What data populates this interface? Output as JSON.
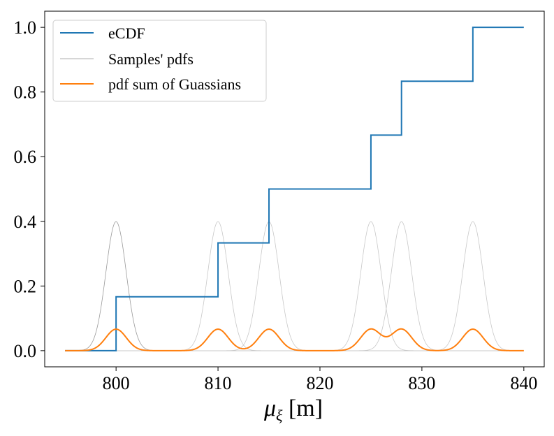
{
  "chart_data": {
    "type": "line",
    "title": "",
    "xlabel": "μ_ξ [m]",
    "xlabel_parts": {
      "symbol": "μ",
      "subscript": "ξ",
      "unit": "[m]"
    },
    "ylabel": "",
    "xlim": [
      793,
      842
    ],
    "ylim": [
      -0.05,
      1.05
    ],
    "xticks": [
      800,
      810,
      820,
      830,
      840
    ],
    "xtick_labels": [
      "800",
      "810",
      "820",
      "830",
      "840"
    ],
    "yticks": [
      0.0,
      0.2,
      0.4,
      0.6,
      0.8,
      1.0
    ],
    "ytick_labels": [
      "0.0",
      "0.2",
      "0.4",
      "0.6",
      "0.8",
      "1.0"
    ],
    "grid": false,
    "legend_position": "top-left",
    "samples": [
      800,
      810,
      815,
      825,
      828,
      835
    ],
    "sigma": 1.0,
    "x_range": [
      795,
      840
    ],
    "series": [
      {
        "name": "eCDF",
        "color": "#1f77b4",
        "kind": "step",
        "x": [
          795,
          800,
          800,
          810,
          810,
          815,
          815,
          825,
          825,
          828,
          828,
          835,
          835,
          840
        ],
        "y": [
          0,
          0,
          0.1667,
          0.1667,
          0.3333,
          0.3333,
          0.5,
          0.5,
          0.6667,
          0.6667,
          0.8333,
          0.8333,
          1.0,
          1.0
        ]
      },
      {
        "name": "Samples' pdfs",
        "color": "#c8c8c8",
        "kind": "gaussians",
        "peak": 0.3989
      },
      {
        "name": "pdf sum of Guassians",
        "color": "#ff7f0e",
        "kind": "gaussian_mixture",
        "peak": 0.0665
      }
    ]
  }
}
